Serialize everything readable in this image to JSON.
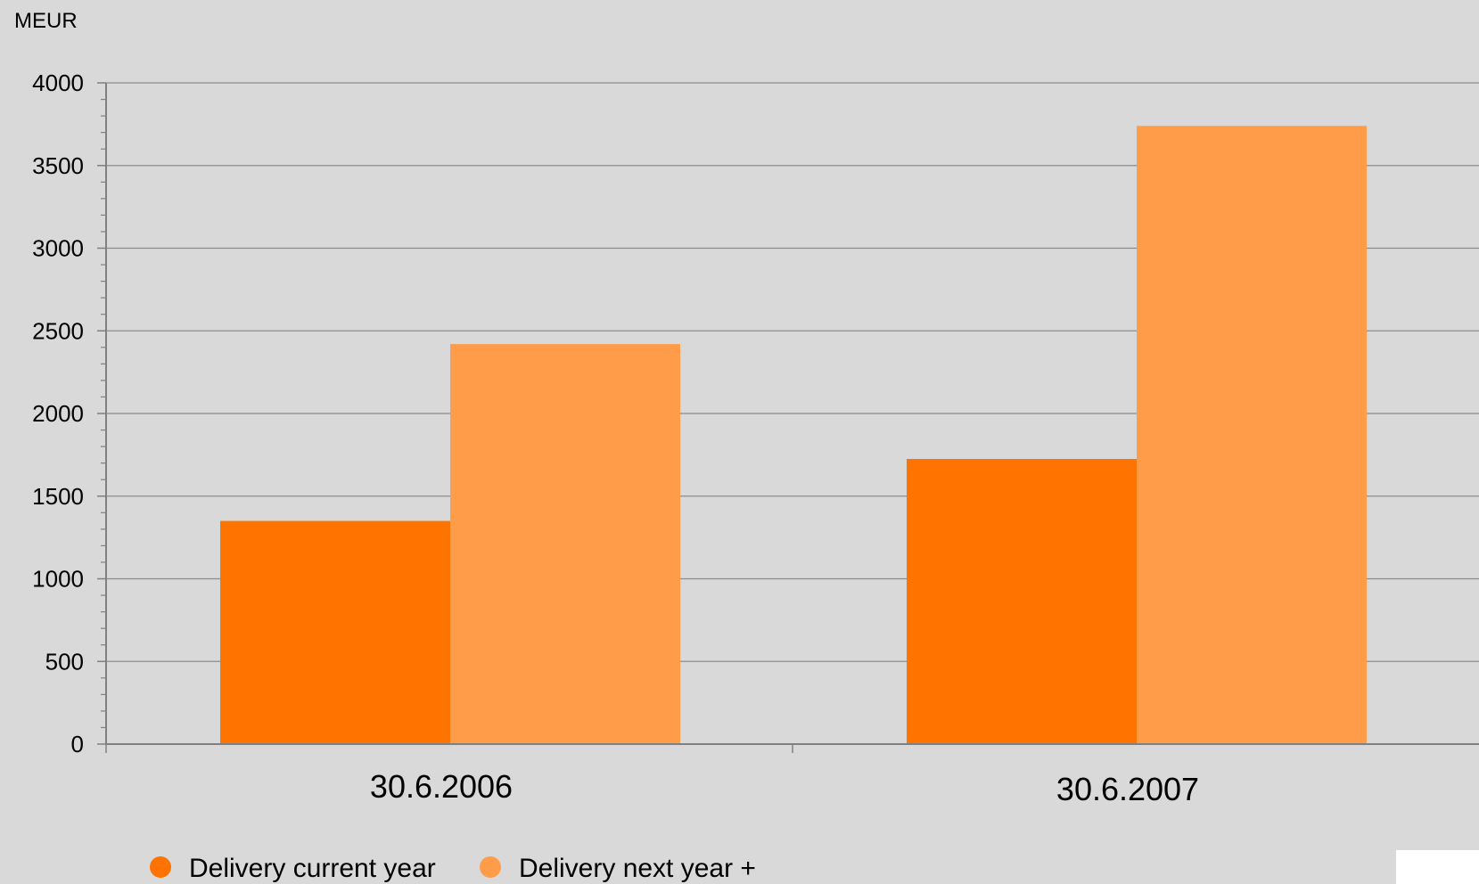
{
  "chart_data": {
    "type": "bar",
    "ylabel": "MEUR",
    "categories": [
      "30.6.2006",
      "30.6.2007"
    ],
    "ylim": [
      0,
      4000
    ],
    "yticks": [
      0,
      500,
      1000,
      1500,
      2000,
      2500,
      3000,
      3500,
      4000
    ],
    "grid": true,
    "legend_position": "bottom-left",
    "series": [
      {
        "name": "Delivery current year",
        "color": "#ff7300",
        "values": [
          1350,
          1725
        ]
      },
      {
        "name": "Delivery next year +",
        "color": "#ff9c4a",
        "values": [
          2420,
          3740
        ]
      }
    ]
  },
  "colors": {
    "background": "#d9d9d9",
    "gridline": "#8c8c8c",
    "axis": "#808080"
  }
}
